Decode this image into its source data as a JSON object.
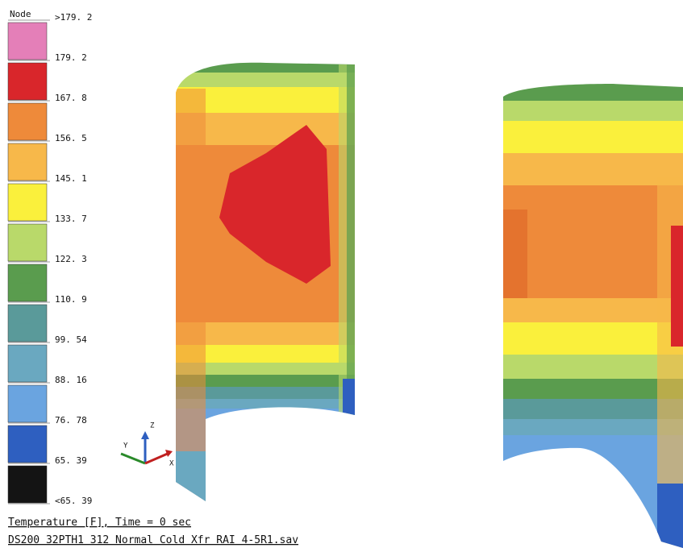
{
  "legend": {
    "title": "Node",
    "labels": [
      ">179. 2",
      "179. 2",
      "167. 8",
      "156. 5",
      "145. 1",
      "133. 7",
      "122. 3",
      "110. 9",
      "99. 54",
      "88. 16",
      "76. 78",
      "65. 39",
      "<65. 39"
    ],
    "colors": [
      "#e47fb8",
      "#d9262b",
      "#ee8a3a",
      "#f7b84a",
      "#faf03c",
      "#b9d96a",
      "#5a9c4e",
      "#5a9a9a",
      "#6aa8c0",
      "#6aa4e0",
      "#2e5fc0",
      "#141414"
    ]
  },
  "triad": {
    "labels": [
      "Y",
      "Z",
      "X"
    ]
  },
  "footer": {
    "lines": [
      "Temperature [F], Time = 0 sec",
      "DS200 32PTH1 312 Normal Cold Xfr RAI 4-5R1.sav"
    ]
  }
}
